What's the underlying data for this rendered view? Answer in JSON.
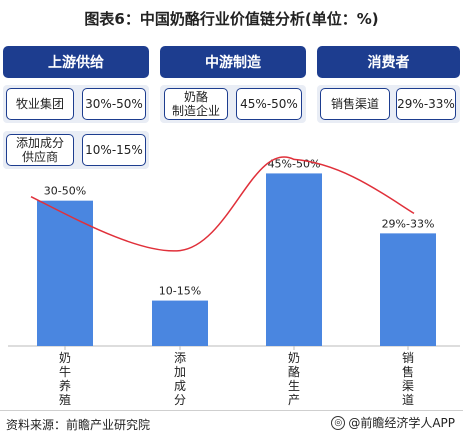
{
  "title": "图表6：中国奶酪行业价值链分析(单位：%)",
  "table": {
    "headers": [
      "上游供给",
      "中游制造",
      "消费者"
    ],
    "rows": [
      {
        "label": "牧业集团",
        "value": "30%-50%"
      },
      {
        "label": "奶酪\n制造企业",
        "value": "45%-50%"
      },
      {
        "label": "销售渠道",
        "value": "29%-33%"
      },
      {
        "label": "添加成分\n供应商",
        "value": "10%-15%"
      }
    ]
  },
  "chart_data": {
    "type": "bar",
    "categories": [
      "奶牛养殖",
      "添加成分",
      "奶酪生产",
      "销售渠道"
    ],
    "values": [
      40,
      12.5,
      47.5,
      31
    ],
    "data_labels": [
      "30-50%",
      "10-15%",
      "45%-50%",
      "29%-33%"
    ],
    "ylim": [
      0,
      60
    ],
    "bar_color": "#4a86e0",
    "curve_color": "#e0303a",
    "grid": false
  },
  "footer": {
    "source": "资料来源：前瞻产业研究院",
    "brand": "@前瞻经济学人APP"
  },
  "colors": {
    "header": "#1d3d8f",
    "bar": "#4a86e0",
    "curve": "#e0303a"
  }
}
